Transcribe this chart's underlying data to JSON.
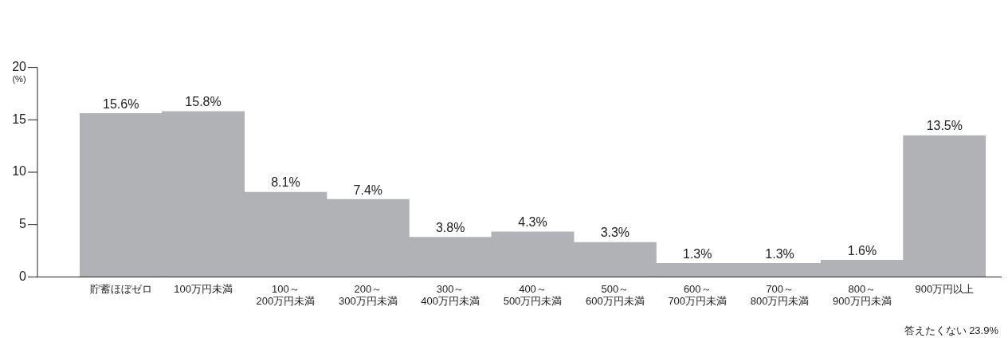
{
  "chart_data": {
    "type": "bar",
    "ylabel": "(%)",
    "categories": [
      "貯蓄ほぼゼロ",
      "100万円未満",
      "100～\n200万円未満",
      "200～\n300万円未満",
      "300～\n400万円未満",
      "400～\n500万円未満",
      "500～\n600万円未満",
      "600～\n700万円未満",
      "700～\n800万円未満",
      "800～\n900万円未満",
      "900万円以上"
    ],
    "values": [
      15.6,
      15.8,
      8.1,
      7.4,
      3.8,
      4.3,
      3.3,
      1.3,
      1.3,
      1.6,
      13.5
    ],
    "value_labels": [
      "15.6%",
      "15.8%",
      "8.1%",
      "7.4%",
      "3.8%",
      "4.3%",
      "3.3%",
      "1.3%",
      "1.3%",
      "1.6%",
      "13.5%"
    ],
    "color": "#b1b2b6",
    "ylim": [
      0,
      20
    ],
    "yticks": [
      0,
      5,
      10,
      15,
      20
    ],
    "grid": false,
    "legend": false,
    "annotations": [
      "答えたくない 23.9%"
    ]
  }
}
